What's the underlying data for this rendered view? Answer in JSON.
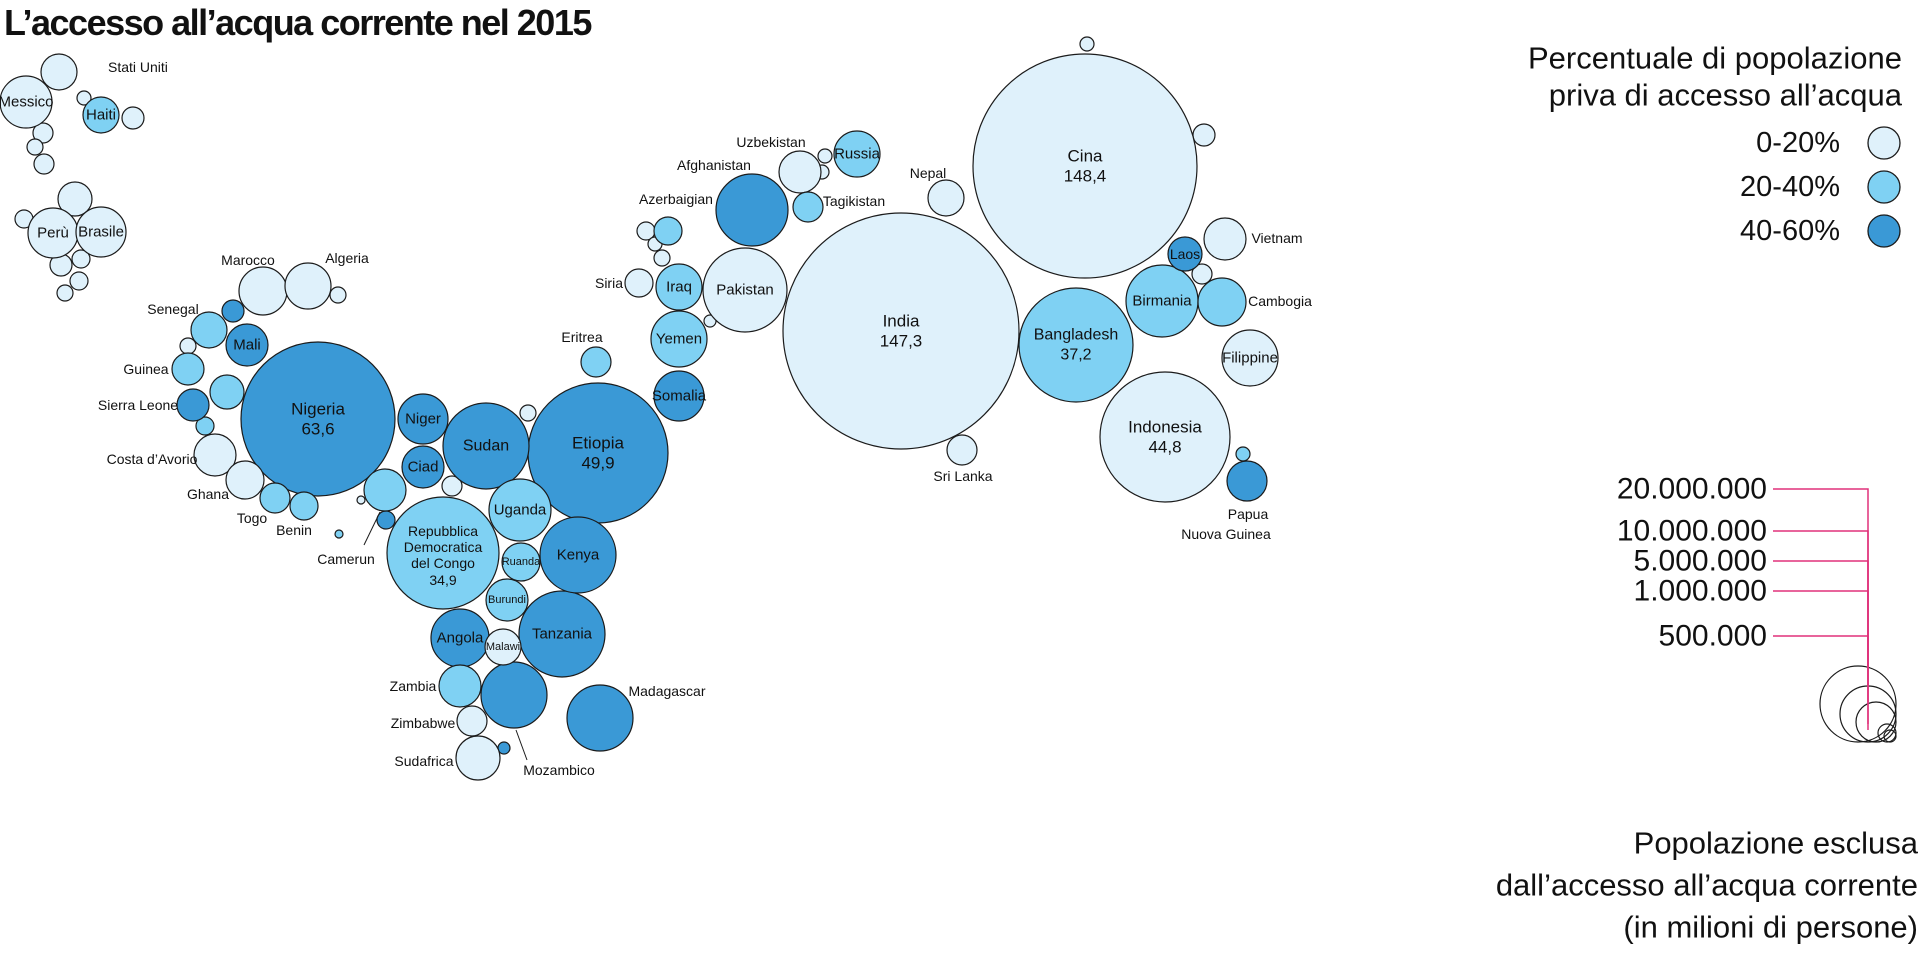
{
  "title": "L’accesso all’acqua corrente nel 2015",
  "chart_data": {
    "type": "bubble",
    "title": "L’accesso all’acqua corrente nel 2015",
    "color_categories": [
      {
        "key": "low",
        "label": "0-20%",
        "color": "#dff1fb"
      },
      {
        "key": "mid",
        "label": "20-40%",
        "color": "#7fd1f3"
      },
      {
        "key": "high",
        "label": "40-60%",
        "color": "#3a99d6"
      }
    ],
    "color_legend_title": [
      "Percentuale di popolazione",
      "priva di accesso all’acqua"
    ],
    "size_legend_title": [
      "Popolazione esclusa",
      "dall’accesso all’acqua corrente",
      "(in milioni di persone)"
    ],
    "size_legend_values": [
      "20.000.000",
      "10.000.000",
      "5.000.000",
      "1.000.000",
      "500.000"
    ],
    "bubbles": [
      {
        "name": "Stati Uniti",
        "cat": "low"
      },
      {
        "name": "Messico",
        "cat": "low"
      },
      {
        "name": "Haiti",
        "cat": "mid"
      },
      {
        "name": "Perù",
        "cat": "low"
      },
      {
        "name": "Brasile",
        "cat": "low"
      },
      {
        "name": "Marocco",
        "cat": "low"
      },
      {
        "name": "Algeria",
        "cat": "low"
      },
      {
        "name": "Senegal",
        "cat": "mid"
      },
      {
        "name": "Mali",
        "cat": "high"
      },
      {
        "name": "Guinea",
        "cat": "mid"
      },
      {
        "name": "Sierra Leone",
        "cat": "high"
      },
      {
        "name": "Costa d’Avorio",
        "cat": "low"
      },
      {
        "name": "Ghana",
        "cat": "low"
      },
      {
        "name": "Togo",
        "cat": "mid"
      },
      {
        "name": "Benin",
        "cat": "mid"
      },
      {
        "name": "Nigeria",
        "cat": "high",
        "value": "63,6"
      },
      {
        "name": "Niger",
        "cat": "high"
      },
      {
        "name": "Ciad",
        "cat": "high"
      },
      {
        "name": "Sudan",
        "cat": "high"
      },
      {
        "name": "Camerun",
        "cat": "mid"
      },
      {
        "name": "Repubblica Democratica del Congo",
        "cat": "mid",
        "value": "34,9"
      },
      {
        "name": "Uganda",
        "cat": "mid"
      },
      {
        "name": "Ruanda",
        "cat": "mid"
      },
      {
        "name": "Burundi",
        "cat": "mid"
      },
      {
        "name": "Kenya",
        "cat": "high"
      },
      {
        "name": "Tanzania",
        "cat": "high"
      },
      {
        "name": "Angola",
        "cat": "high"
      },
      {
        "name": "Malawi",
        "cat": "low"
      },
      {
        "name": "Zambia",
        "cat": "mid"
      },
      {
        "name": "Mozambico",
        "cat": "high"
      },
      {
        "name": "Zimbabwe",
        "cat": "low"
      },
      {
        "name": "Sudafrica",
        "cat": "low"
      },
      {
        "name": "Madagascar",
        "cat": "high"
      },
      {
        "name": "Etiopia",
        "cat": "high",
        "value": "49,9"
      },
      {
        "name": "Eritrea",
        "cat": "mid"
      },
      {
        "name": "Somalia",
        "cat": "high"
      },
      {
        "name": "Yemen",
        "cat": "mid"
      },
      {
        "name": "Iraq",
        "cat": "mid"
      },
      {
        "name": "Siria",
        "cat": "low"
      },
      {
        "name": "Azerbaigian",
        "cat": "mid"
      },
      {
        "name": "Afghanistan",
        "cat": "high"
      },
      {
        "name": "Uzbekistan",
        "cat": "low"
      },
      {
        "name": "Russia",
        "cat": "mid"
      },
      {
        "name": "Tagikistan",
        "cat": "mid"
      },
      {
        "name": "Pakistan",
        "cat": "low"
      },
      {
        "name": "India",
        "cat": "low",
        "value": "147,3"
      },
      {
        "name": "Nepal",
        "cat": "low"
      },
      {
        "name": "Sri Lanka",
        "cat": "low"
      },
      {
        "name": "Cina",
        "cat": "low",
        "value": "148,4"
      },
      {
        "name": "Bangladesh",
        "cat": "mid",
        "value": "37,2"
      },
      {
        "name": "Birmania",
        "cat": "mid"
      },
      {
        "name": "Laos",
        "cat": "high"
      },
      {
        "name": "Vietnam",
        "cat": "low"
      },
      {
        "name": "Cambogia",
        "cat": "mid"
      },
      {
        "name": "Filippine",
        "cat": "low"
      },
      {
        "name": "Indonesia",
        "cat": "low",
        "value": "44,8"
      },
      {
        "name": "Papua Nuova Guinea",
        "cat": "high"
      }
    ]
  }
}
